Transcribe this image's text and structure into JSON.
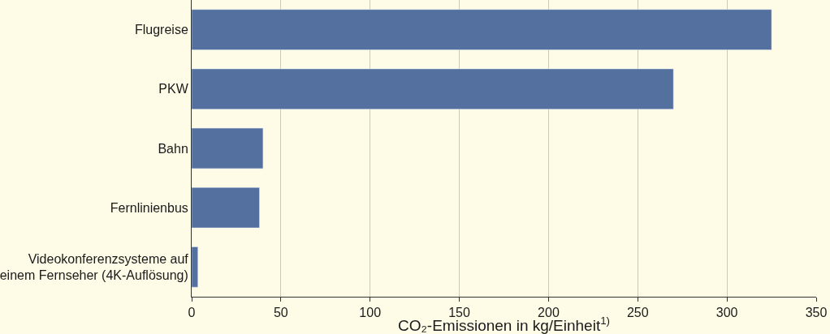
{
  "chart_data": {
    "type": "bar",
    "orientation": "horizontal",
    "categories": [
      "Flugreise",
      "PKW",
      "Bahn",
      "Fernlinienbus",
      "Videokonferenzsysteme auf\neinem Fernseher (4K-Auflösung)"
    ],
    "values": [
      325,
      270,
      40,
      38,
      3.5
    ],
    "color": "#53709f",
    "xlim": [
      0,
      350
    ],
    "xticks": [
      0,
      50,
      100,
      150,
      200,
      250,
      300,
      350
    ],
    "xlabel": "CO₂-Emissionen in kg/Einheit$^{1)}$",
    "grid": "x"
  }
}
